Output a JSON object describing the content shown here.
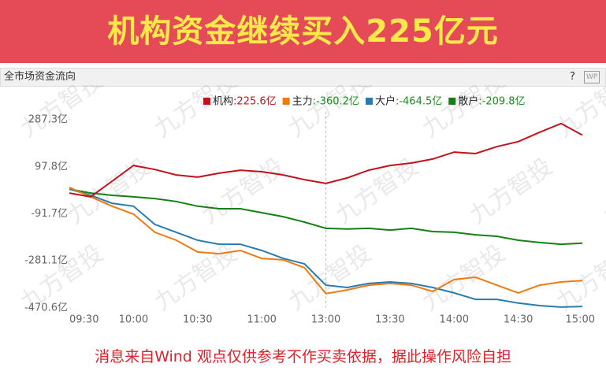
{
  "header": {
    "banner": "机构资金继续买入225亿元",
    "panel_title": "全市场资金流向",
    "help": "?",
    "badge": "WP"
  },
  "footer": "消息来自Wind  观点仅供参考不作买卖依据，据此操作风险自担",
  "chart_data": {
    "type": "line",
    "watermark": "九方智投",
    "x": [
      "09:30",
      "09:40",
      "09:50",
      "10:00",
      "10:10",
      "10:20",
      "10:30",
      "10:40",
      "10:50",
      "11:00",
      "11:10",
      "11:20",
      "13:00",
      "13:10",
      "13:20",
      "13:30",
      "13:40",
      "13:50",
      "14:00",
      "14:10",
      "14:20",
      "14:30",
      "14:40",
      "14:50",
      "15:00"
    ],
    "xticks": [
      "09:30",
      "10:00",
      "10:30",
      "11:00",
      "13:00",
      "13:30",
      "14:00",
      "14:30",
      "15:00"
    ],
    "ylim": [
      -470.6,
      287.3
    ],
    "yticks": [
      {
        "value": 287.3,
        "label": "287.3亿"
      },
      {
        "value": 97.8,
        "label": "97.8亿"
      },
      {
        "value": -91.7,
        "label": "-91.7亿"
      },
      {
        "value": -281.1,
        "label": "-281.1亿"
      },
      {
        "value": -470.6,
        "label": "-470.6亿"
      }
    ],
    "series": [
      {
        "name": "机构",
        "legend_value": ":225.6亿",
        "legend_value_color": "#c0141c",
        "color": "#c0141c",
        "values": [
          -8,
          -23,
          40,
          103,
          87,
          65,
          56,
          72,
          84,
          78,
          65,
          46,
          31,
          53,
          84,
          103,
          113,
          129,
          157,
          151,
          179,
          199,
          237,
          272,
          225.6
        ]
      },
      {
        "name": "主力",
        "legend_value": ":-360.2亿",
        "legend_value_color": "#1d8a1d",
        "color": "#f07a10",
        "values": [
          15,
          -23,
          -61,
          -93,
          -166,
          -198,
          -245,
          -252,
          -239,
          -271,
          -277,
          -309,
          -413,
          -398,
          -379,
          -372,
          -379,
          -404,
          -356,
          -347,
          -379,
          -410,
          -379,
          -366,
          -360.2
        ]
      },
      {
        "name": "大户",
        "legend_value": ":-464.5亿",
        "legend_value_color": "#1d8a1d",
        "color": "#2a7bb0",
        "values": [
          8,
          -17,
          -49,
          -61,
          -134,
          -166,
          -198,
          -214,
          -214,
          -239,
          -271,
          -293,
          -379,
          -388,
          -372,
          -366,
          -372,
          -388,
          -410,
          -436,
          -436,
          -451,
          -461,
          -467,
          -464.5
        ]
      },
      {
        "name": "散户",
        "legend_value": ":-209.8亿",
        "legend_value_color": "#1d8a1d",
        "color": "#168016",
        "values": [
          8,
          -8,
          -17,
          -23,
          -30,
          -42,
          -61,
          -71,
          -71,
          -87,
          -103,
          -125,
          -150,
          -153,
          -150,
          -157,
          -150,
          -163,
          -166,
          -176,
          -182,
          -198,
          -207,
          -214,
          -209.8
        ]
      }
    ]
  }
}
